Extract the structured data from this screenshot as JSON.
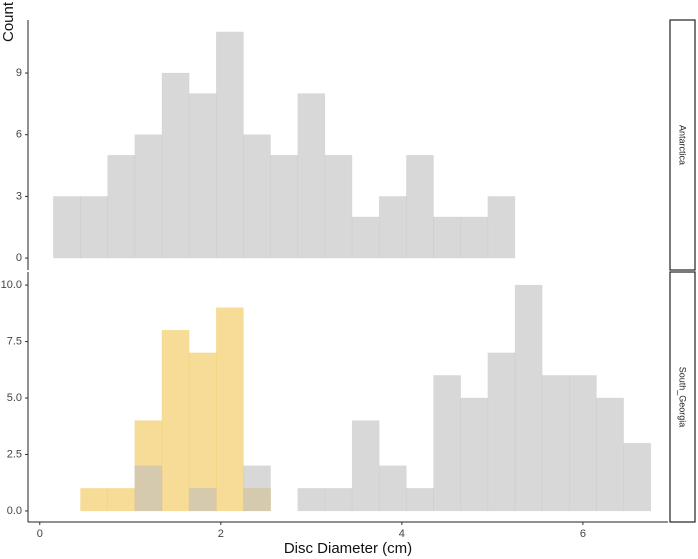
{
  "chart_data": [
    {
      "type": "histogram",
      "strip_label": "Antarctica",
      "y_label": "Count",
      "bins": [
        0.15,
        0.45,
        0.75,
        1.05,
        1.35,
        1.65,
        1.95,
        2.25,
        2.55,
        2.85,
        3.15,
        3.45,
        3.75,
        4.05,
        4.35,
        4.65,
        4.95,
        5.25,
        5.55,
        5.85,
        6.15,
        6.45,
        6.75
      ],
      "series": [
        {
          "color": "#bebebe",
          "values": [
            3,
            3,
            5,
            6,
            9,
            8,
            11,
            6,
            5,
            8,
            5,
            2,
            3,
            5,
            2,
            2,
            3,
            0,
            0,
            0,
            0,
            0
          ]
        }
      ],
      "alpha": 0.6,
      "xlim": [
        -0.13,
        6.94
      ],
      "ylim": [
        -0.58,
        11.58
      ],
      "yticks": [
        0,
        3,
        6,
        9
      ]
    },
    {
      "type": "histogram",
      "strip_label": "South_Georgia",
      "x_label": "Disc Diameter (cm)",
      "bins": [
        0.15,
        0.45,
        0.75,
        1.05,
        1.35,
        1.65,
        1.95,
        2.25,
        2.55,
        2.85,
        3.15,
        3.45,
        3.75,
        4.05,
        4.35,
        4.65,
        4.95,
        5.25,
        5.55,
        5.85,
        6.15,
        6.45,
        6.75
      ],
      "series": [
        {
          "color": "#f2c452",
          "values": [
            0,
            1,
            1,
            4,
            8,
            7,
            9,
            1,
            0,
            0,
            0,
            0,
            0,
            0,
            0,
            0,
            0,
            0,
            0,
            0,
            0,
            0
          ]
        },
        {
          "color": "#bebebe",
          "values": [
            0,
            0,
            0,
            2,
            0,
            1,
            0,
            2,
            0,
            1,
            1,
            4,
            2,
            1,
            6,
            5,
            7,
            10,
            6,
            6,
            5,
            3
          ]
        }
      ],
      "alpha": 0.6,
      "xlim": [
        -0.13,
        6.94
      ],
      "xticks": [
        0,
        2,
        4,
        6
      ],
      "ylim": [
        -0.49,
        10.58
      ],
      "yticks": [
        {
          "value": 0,
          "label": "0.0"
        },
        {
          "value": 2.5,
          "label": "2.5"
        },
        {
          "value": 5,
          "label": "5.0"
        },
        {
          "value": 7.5,
          "label": "7.5"
        },
        {
          "value": 10,
          "label": "10.0"
        }
      ]
    }
  ]
}
